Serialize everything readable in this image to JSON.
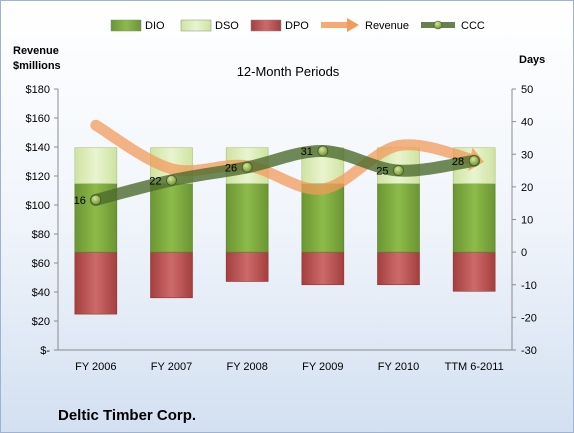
{
  "chart_data": {
    "type": "bar",
    "title": "12-Month Periods",
    "company": "Deltic Timber Corp.",
    "categories": [
      "FY 2006",
      "FY 2007",
      "FY 2008",
      "FY 2009",
      "FY 2010",
      "TTM 6-2011"
    ],
    "left_axis": {
      "title_line1": "Revenue",
      "title_line2": "$millions",
      "ylim": [
        0,
        180
      ],
      "ticks": [
        "$-",
        "$20",
        "$40",
        "$60",
        "$80",
        "$100",
        "$120",
        "$140",
        "$160",
        "$180"
      ]
    },
    "right_axis": {
      "title": "Days",
      "ylim": [
        -30,
        50
      ],
      "ticks": [
        "-30",
        "-20",
        "-10",
        "0",
        "10",
        "20",
        "30",
        "40",
        "50"
      ]
    },
    "legend_position": "top",
    "series": [
      {
        "name": "DIO",
        "type": "stacked-bar",
        "axis": "right",
        "values": [
          21,
          21,
          21,
          21,
          21,
          21
        ],
        "color": "#77a33a"
      },
      {
        "name": "DSO",
        "type": "stacked-bar",
        "axis": "right",
        "values": [
          11,
          11,
          11,
          11,
          11,
          11
        ],
        "color": "#d9ebb1"
      },
      {
        "name": "DPO",
        "type": "negative-bar",
        "axis": "right",
        "values": [
          -19,
          -14,
          -9,
          -10,
          -10,
          -12
        ],
        "color": "#b94a4a"
      },
      {
        "name": "Revenue",
        "type": "line",
        "axis": "left",
        "values": [
          155,
          125,
          127,
          111,
          141,
          131
        ],
        "color": "#f29b5b"
      },
      {
        "name": "CCC",
        "type": "line",
        "axis": "right",
        "values": [
          16,
          22,
          26,
          31,
          25,
          28
        ],
        "color": "#4d6b2d",
        "labels": [
          "16",
          "22",
          "26",
          "31",
          "25",
          "28"
        ]
      }
    ]
  }
}
